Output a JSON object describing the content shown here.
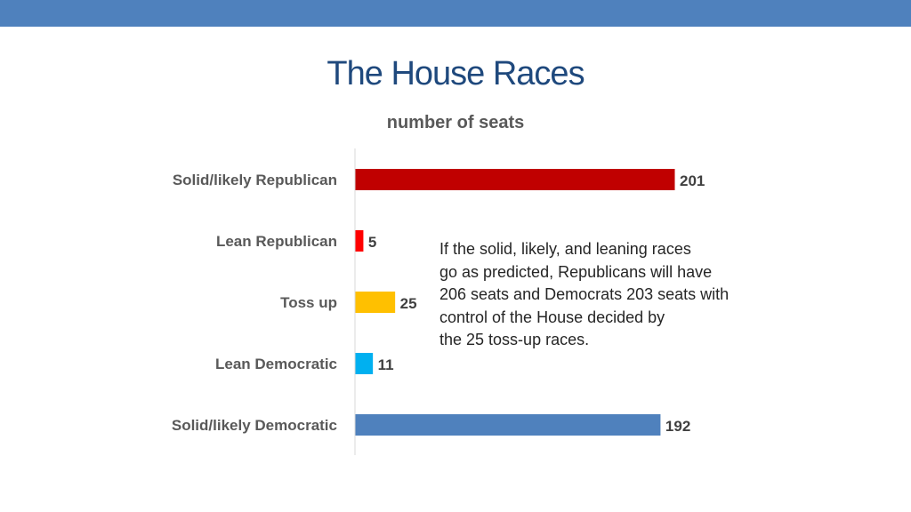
{
  "theme": {
    "top_bar_color": "#4F81BD",
    "title_color": "#1F497D"
  },
  "slide": {
    "title": "The House Races",
    "subtitle": "number of seats",
    "note_lines": [
      "If the solid, likely, and leaning races",
      "go as predicted, Republicans will have",
      "206 seats and Democrats 203 seats with",
      "control of the House decided by",
      "the 25 toss-up races."
    ]
  },
  "chart_data": {
    "type": "bar",
    "orientation": "horizontal",
    "title": "The House Races",
    "subtitle": "number of seats",
    "categories": [
      "Solid/likely Republican",
      "Lean Republican",
      "Toss up",
      "Lean Democratic",
      "Solid/likely Democratic"
    ],
    "values": [
      201,
      5,
      25,
      11,
      192
    ],
    "colors": [
      "#C00000",
      "#FF0000",
      "#FFC000",
      "#00B0F0",
      "#4F81BD"
    ],
    "xlim": [
      0,
      201
    ],
    "grid": false,
    "legend": "none"
  }
}
